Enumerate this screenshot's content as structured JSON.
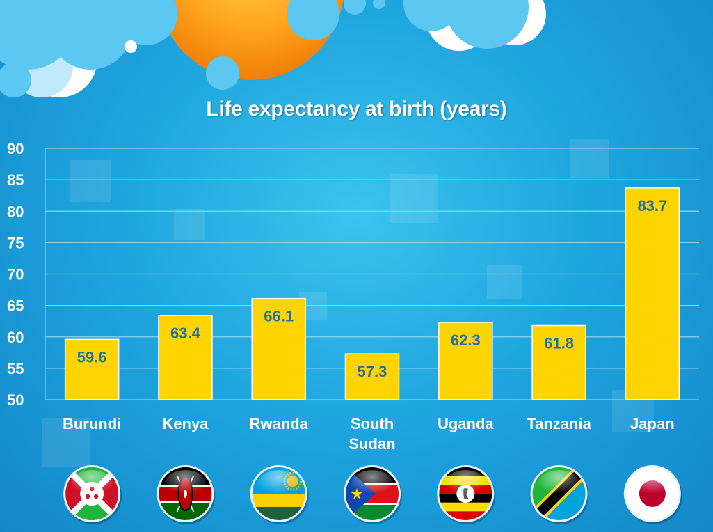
{
  "chart_data": {
    "type": "bar",
    "title": "Life expectancy at birth (years)",
    "categories": [
      "Burundi",
      "Kenya",
      "Rwanda",
      "South Sudan",
      "Uganda",
      "Tanzania",
      "Japan"
    ],
    "values": [
      59.6,
      63.4,
      66.1,
      57.3,
      62.3,
      61.8,
      83.7
    ],
    "value_labels": [
      "59.6",
      "63.4",
      "66.1",
      "57.3",
      "62.3",
      "61.8",
      "83.7"
    ],
    "ylim": [
      50,
      90
    ],
    "yticks": [
      "50",
      "55",
      "60",
      "65",
      "70",
      "75",
      "80",
      "85",
      "90"
    ],
    "xlabel": "",
    "ylabel": "",
    "grid": true,
    "legend": "none",
    "colors": {
      "bar": "#FFD400",
      "value_label": "#1E6FA8",
      "axis_text": "#FFFFFF",
      "gridline": "#8FD3F2",
      "background": "#1EA6DF"
    }
  },
  "flags": [
    {
      "country": "Burundi",
      "icon": "burundi-flag-icon"
    },
    {
      "country": "Kenya",
      "icon": "kenya-flag-icon"
    },
    {
      "country": "Rwanda",
      "icon": "rwanda-flag-icon"
    },
    {
      "country": "South Sudan",
      "icon": "south-sudan-flag-icon"
    },
    {
      "country": "Uganda",
      "icon": "uganda-flag-icon"
    },
    {
      "country": "Tanzania",
      "icon": "tanzania-flag-icon"
    },
    {
      "country": "Japan",
      "icon": "japan-flag-icon"
    }
  ],
  "decoration": {
    "sun_icon": "sun-icon",
    "cloud_icon": "cloud-icon"
  }
}
